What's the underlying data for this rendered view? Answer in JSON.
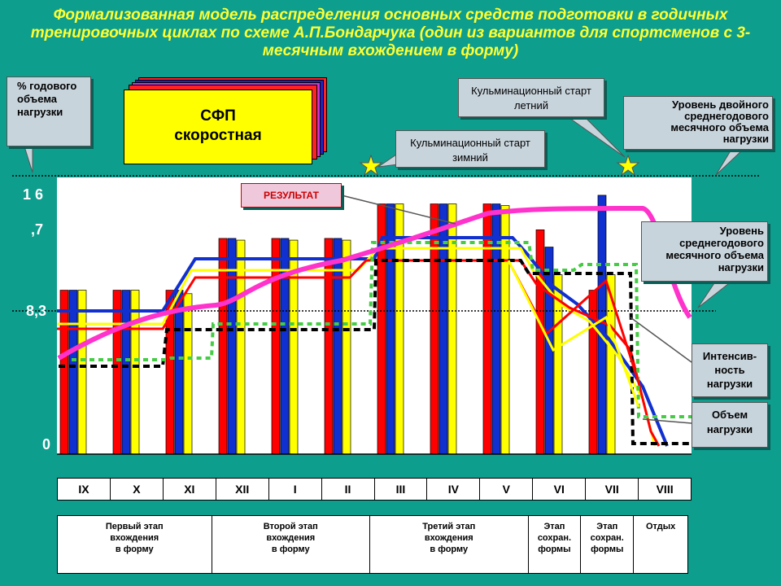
{
  "title": "Формализованная модель распределения основных средств подготовки в годичных тренировочных циклах по схеме А.П.Бондарчука (один из вариантов для спортсменов с 3-месячным вхождением в форму)",
  "callouts": {
    "percent_load": "% годового объема нагрузки",
    "culm_summer": "Кульминационный старт летний",
    "culm_winter": "Кульминационный старт зимний",
    "double_level": "Уровень двойного среднегодового месячного объема нагрузки",
    "avg_level": "Уровень среднегодового месячного объема нагрузки",
    "intensity": "Интенсив-ность нагрузки",
    "volume": "Объем нагрузки",
    "result": "РЕЗУЛЬТАТ"
  },
  "sfp_card": {
    "line1": "СФП",
    "line2": "скоростная"
  },
  "y_labels": {
    "top": "1 6",
    "mid": ",7",
    "avg": "8,3",
    "zero": "0"
  },
  "months": [
    "IX",
    "X",
    "XI",
    "XII",
    "I",
    "II",
    "III",
    "IV",
    "V",
    "VI",
    "VII",
    "VIII"
  ],
  "stages": [
    "Первый этап\nвхождения\nв форму",
    "Второй этап\nвхождения\nв форму",
    "Третий этап\nвхождения\nв форму",
    "Этап\nсохран.\nформы",
    "Этап\nсохран.\nформы",
    "Отдых"
  ],
  "colors": {
    "red": "#ff0000",
    "blue": "#1030d0",
    "yellow": "#ffff00",
    "magenta": "#ff33cc",
    "green": "#44cc44"
  },
  "bars_percent": {
    "red": [
      9.5,
      9.5,
      9.5,
      12.5,
      12.5,
      12.5,
      14.5,
      14.5,
      14.5,
      13,
      9.5,
      0
    ],
    "blue": [
      9.5,
      9.5,
      9.5,
      12.5,
      12.5,
      12.5,
      14.5,
      14.5,
      14.5,
      12,
      15,
      0
    ],
    "yellow": [
      9.5,
      9.5,
      9.3,
      12.4,
      12.4,
      12.4,
      14.5,
      14.5,
      14.4,
      10.4,
      10.4,
      0
    ]
  }
}
